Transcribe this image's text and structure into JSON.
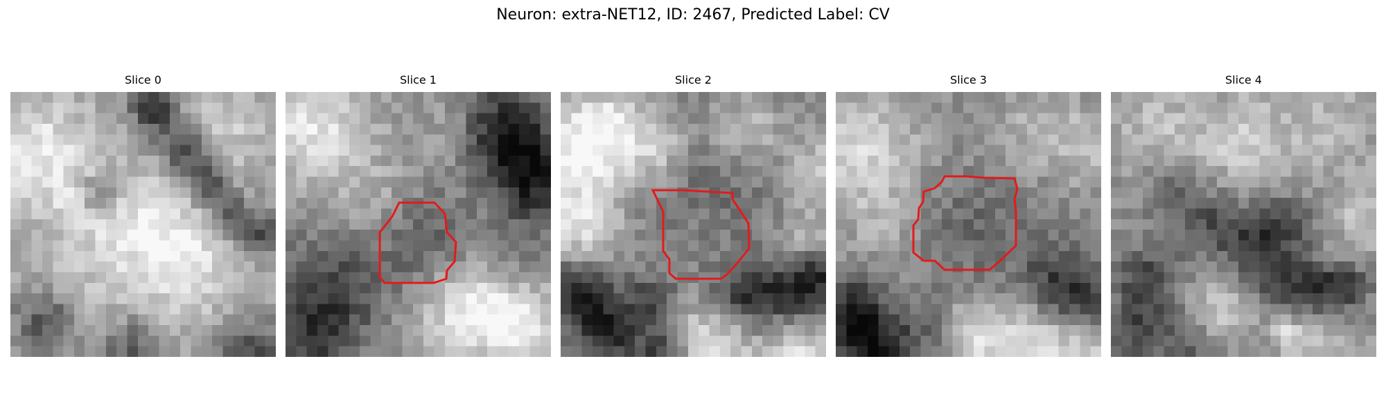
{
  "figure": {
    "title": "Neuron: extra-NET12, ID: 2467, Predicted Label: CV"
  },
  "panels": [
    {
      "title": "Slice 0",
      "has_contour": false
    },
    {
      "title": "Slice 1",
      "has_contour": true
    },
    {
      "title": "Slice 2",
      "has_contour": true
    },
    {
      "title": "Slice 3",
      "has_contour": true
    },
    {
      "title": "Slice 4",
      "has_contour": false
    }
  ],
  "colors": {
    "contour": "#e31a1c",
    "background": "#ffffff"
  },
  "image": {
    "colormap": "gray",
    "grid_size": 25
  }
}
